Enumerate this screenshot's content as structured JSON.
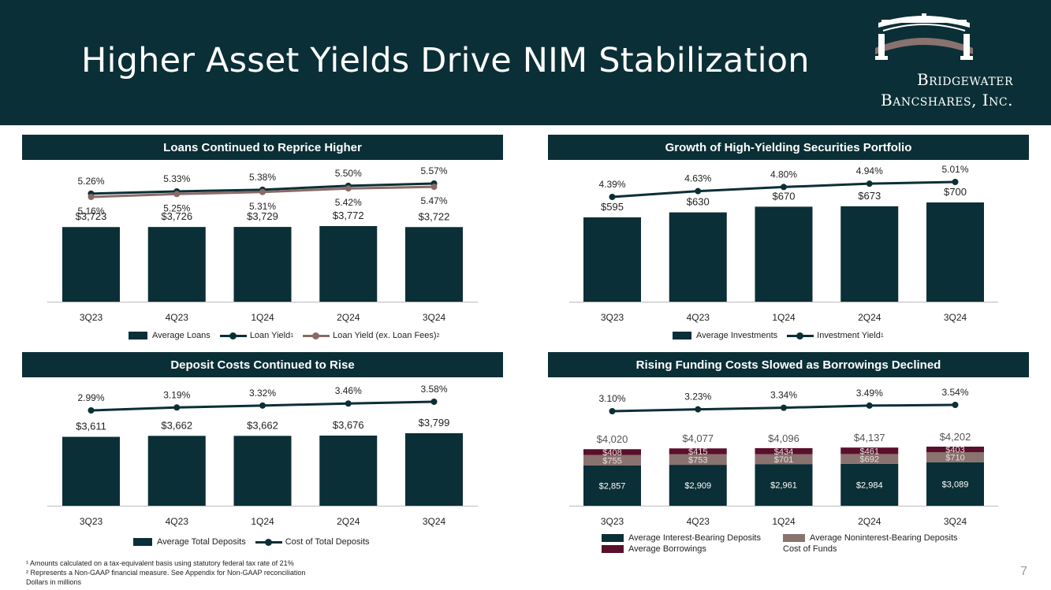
{
  "page": {
    "title": "Higher Asset Yields Drive NIM Stabilization",
    "brand_line1": "Bridgewater",
    "brand_line2": "Bancshares, Inc.",
    "page_number": "7",
    "footnotes": [
      "¹ Amounts calculated on a tax-equivalent basis using statutory federal tax rate of 21%",
      "² Represents a Non-GAAP financial measure. See Appendix for Non-GAAP reconciliation",
      "Dollars in millions"
    ]
  },
  "colors": {
    "navy": "#0b2f36",
    "taupe": "#8a726f",
    "maroon": "#5a0f2c",
    "line_alt": "#8a6a66"
  },
  "legends": {
    "loans": {
      "bars": "Average Loans",
      "line1": "Loan Yield",
      "line1_sup": "1",
      "line2": "Loan Yield (ex. Loan Fees)",
      "line2_sup": "2"
    },
    "securities": {
      "bars": "Average Investments",
      "line1": "Investment Yield",
      "line1_sup": "1"
    },
    "deposits": {
      "bars": "Average Total Deposits",
      "line1": "Cost of Total Deposits"
    },
    "funding": {
      "s1": "Average Interest-Bearing Deposits",
      "s2": "Average Noninterest-Bearing Deposits",
      "s3": "Average Borrowings",
      "line1": "Cost of Funds"
    }
  },
  "chart_data": [
    {
      "type": "bar",
      "title": "Loans Continued to Reprice Higher",
      "categories": [
        "3Q23",
        "4Q23",
        "1Q24",
        "2Q24",
        "3Q24"
      ],
      "series": [
        {
          "name": "Average Loans",
          "kind": "bar",
          "values": [
            3723,
            3726,
            3729,
            3772,
            3722
          ],
          "labels": [
            "$3,723",
            "$3,726",
            "$3,729",
            "$3,772",
            "$3,722"
          ]
        },
        {
          "name": "Loan Yield",
          "kind": "line",
          "values": [
            5.26,
            5.33,
            5.38,
            5.5,
            5.57
          ],
          "labels": [
            "5.26%",
            "5.33%",
            "5.38%",
            "5.50%",
            "5.57%"
          ]
        },
        {
          "name": "Loan Yield (ex. Loan Fees)",
          "kind": "line",
          "values": [
            5.16,
            5.25,
            5.31,
            5.42,
            5.47
          ],
          "labels": [
            "5.16%",
            "5.25%",
            "5.31%",
            "5.42%",
            "5.47%"
          ]
        }
      ]
    },
    {
      "type": "bar",
      "title": "Growth of High-Yielding Securities Portfolio",
      "categories": [
        "3Q23",
        "4Q23",
        "1Q24",
        "2Q24",
        "3Q24"
      ],
      "series": [
        {
          "name": "Average Investments",
          "kind": "bar",
          "values": [
            595,
            630,
            670,
            673,
            700
          ],
          "labels": [
            "$595",
            "$630",
            "$670",
            "$673",
            "$700"
          ]
        },
        {
          "name": "Investment Yield",
          "kind": "line",
          "values": [
            4.39,
            4.63,
            4.8,
            4.94,
            5.01
          ],
          "labels": [
            "4.39%",
            "4.63%",
            "4.80%",
            "4.94%",
            "5.01%"
          ]
        }
      ]
    },
    {
      "type": "bar",
      "title": "Deposit Costs Continued to Rise",
      "categories": [
        "3Q23",
        "4Q23",
        "1Q24",
        "2Q24",
        "3Q24"
      ],
      "series": [
        {
          "name": "Average Total Deposits",
          "kind": "bar",
          "values": [
            3611,
            3662,
            3662,
            3676,
            3799
          ],
          "labels": [
            "$3,611",
            "$3,662",
            "$3,662",
            "$3,676",
            "$3,799"
          ]
        },
        {
          "name": "Cost of Total Deposits",
          "kind": "line",
          "values": [
            2.99,
            3.19,
            3.32,
            3.46,
            3.58
          ],
          "labels": [
            "2.99%",
            "3.19%",
            "3.32%",
            "3.46%",
            "3.58%"
          ]
        }
      ]
    },
    {
      "type": "bar",
      "title": "Rising Funding Costs Slowed as Borrowings Declined",
      "stacked": true,
      "categories": [
        "3Q23",
        "4Q23",
        "1Q24",
        "2Q24",
        "3Q24"
      ],
      "totals": [
        "$4,020",
        "$4,077",
        "$4,096",
        "$4,137",
        "$4,202"
      ],
      "series": [
        {
          "name": "Average Interest-Bearing Deposits",
          "kind": "bar",
          "values": [
            2857,
            2909,
            2961,
            2984,
            3089
          ],
          "labels": [
            "$2,857",
            "$2,909",
            "$2,961",
            "$2,984",
            "$3,089"
          ]
        },
        {
          "name": "Average Noninterest-Bearing Deposits",
          "kind": "bar",
          "values": [
            755,
            753,
            701,
            692,
            710
          ],
          "labels": [
            "$755",
            "$753",
            "$701",
            "$692",
            "$710"
          ]
        },
        {
          "name": "Average Borrowings",
          "kind": "bar",
          "values": [
            408,
            415,
            434,
            461,
            403
          ],
          "labels": [
            "$408",
            "$415",
            "$434",
            "$461",
            "$403"
          ]
        },
        {
          "name": "Cost of Funds",
          "kind": "line",
          "values": [
            3.1,
            3.23,
            3.34,
            3.49,
            3.54
          ],
          "labels": [
            "3.10%",
            "3.23%",
            "3.34%",
            "3.49%",
            "3.54%"
          ]
        }
      ]
    }
  ]
}
